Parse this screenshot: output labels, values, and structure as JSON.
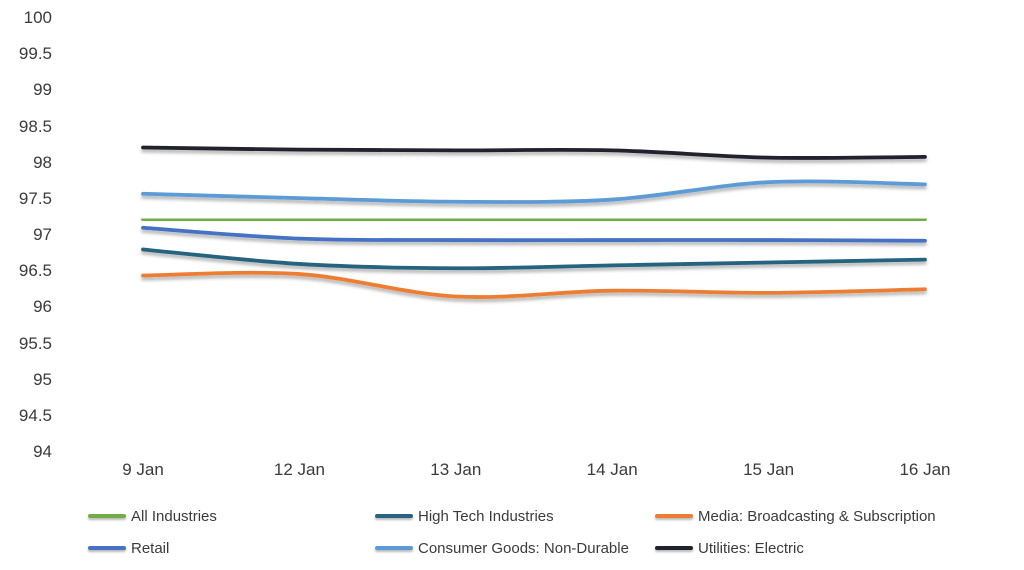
{
  "chart_data": {
    "type": "line",
    "title": "",
    "xlabel": "",
    "ylabel": "",
    "x": [
      "9 Jan",
      "12 Jan",
      "13 Jan",
      "14 Jan",
      "15 Jan",
      "16 Jan"
    ],
    "ylim": [
      94,
      100
    ],
    "ytick_step": 0.5,
    "yticks": [
      94,
      94.5,
      95,
      95.5,
      96,
      96.5,
      97,
      97.5,
      98,
      98.5,
      99,
      99.5,
      100
    ],
    "grid": true,
    "grid_skip_min": true,
    "smooth_lines": true,
    "legend_position": "bottom",
    "series": [
      {
        "name": "All Industries",
        "color": "#70AD47",
        "values": [
          97.22,
          97.21,
          97.21,
          97.21,
          97.21,
          97.22
        ]
      },
      {
        "name": "High Tech Industries",
        "color": "#28647F",
        "values": [
          96.8,
          96.6,
          96.54,
          96.58,
          96.62,
          96.66
        ]
      },
      {
        "name": "Media: Broadcasting & Subscription",
        "color": "#ED7D31",
        "values": [
          96.44,
          96.46,
          96.15,
          96.23,
          96.2,
          96.25
        ]
      },
      {
        "name": "Retail",
        "color": "#4472C4",
        "values": [
          97.1,
          96.95,
          96.93,
          96.93,
          96.93,
          96.92
        ]
      },
      {
        "name": "Consumer Goods: Non-Durable",
        "color": "#5B9BD5",
        "values": [
          97.57,
          97.51,
          97.46,
          97.49,
          97.73,
          97.7
        ]
      },
      {
        "name": "Utilities: Electric",
        "color": "#20222F",
        "values": [
          98.21,
          98.18,
          98.17,
          98.17,
          98.07,
          98.08
        ]
      }
    ]
  },
  "colors": {
    "gridline": "#D9D9D9",
    "axis_text": "#3B3B3B",
    "background": "#FFFFFF"
  }
}
